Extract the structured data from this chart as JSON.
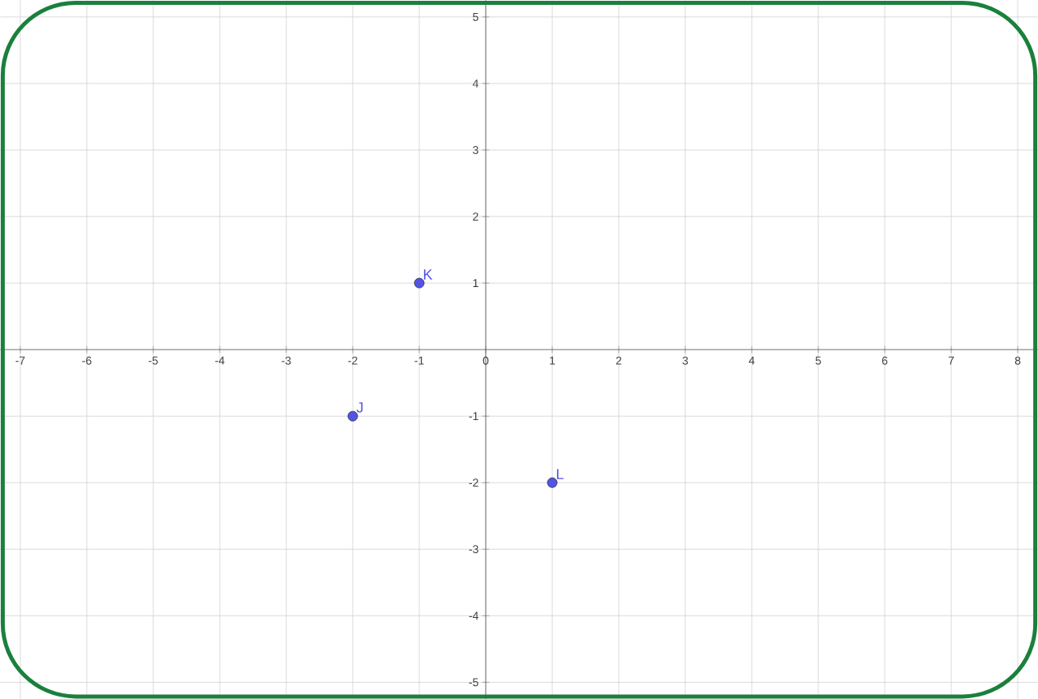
{
  "chart_data": {
    "type": "scatter",
    "x": [
      -1,
      -2,
      1
    ],
    "values": [
      1,
      -1,
      -2
    ],
    "color": "#5353e6",
    "marker": "circle",
    "grid": true,
    "xlim": [
      -7.3,
      8.3
    ],
    "ylim": [
      -5.25,
      5.25
    ],
    "xticks": [
      -7,
      -6,
      -5,
      -4,
      -3,
      -2,
      -1,
      0,
      1,
      2,
      3,
      4,
      5,
      6,
      7,
      8
    ],
    "yticks": [
      -5,
      -4,
      -3,
      -2,
      -1,
      {
        "value": 0,
        "label": null
      },
      1,
      2,
      3,
      4,
      5
    ],
    "annotations": [
      {
        "text": "K",
        "x": -1,
        "y": 1
      },
      {
        "text": "J",
        "x": -2,
        "y": -1
      },
      {
        "text": "L",
        "x": 1,
        "y": -2
      }
    ]
  }
}
